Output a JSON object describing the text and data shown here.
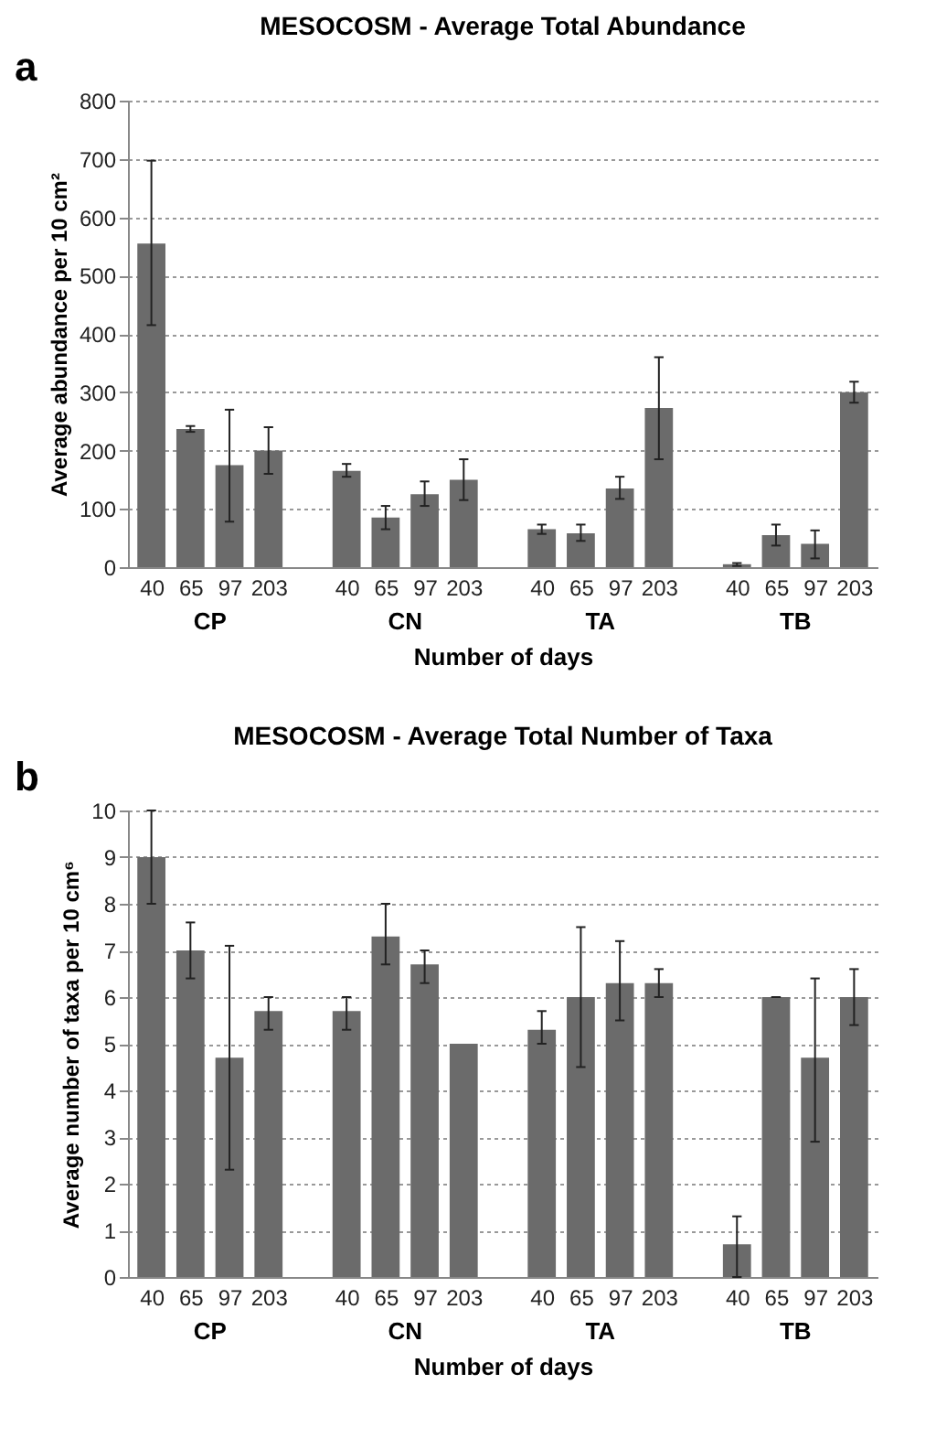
{
  "chart_data": [
    {
      "type": "bar",
      "title": "MESOCOSM - Average Total Abundance",
      "xlabel": "Number of days",
      "ylabel": "Average abundance per 10 cm²",
      "annotations": [
        "a",
        "CP",
        "CN",
        "TA",
        "TB"
      ],
      "categories": [
        "40",
        "65",
        "97",
        "203",
        null,
        "40",
        "65",
        "97",
        "203",
        null,
        "40",
        "65",
        "97",
        "203",
        null,
        "40",
        "65",
        "97",
        "203"
      ],
      "values": [
        555,
        237,
        175,
        200,
        null,
        165,
        85,
        125,
        150,
        null,
        65,
        58,
        135,
        273,
        null,
        5,
        55,
        40,
        300
      ],
      "errors": [
        [
          415,
          697
        ],
        [
          232,
          242
        ],
        [
          78,
          270
        ],
        [
          160,
          240
        ],
        null,
        [
          155,
          177
        ],
        [
          65,
          105
        ],
        [
          105,
          147
        ],
        [
          115,
          185
        ],
        null,
        [
          57,
          73
        ],
        [
          45,
          73
        ],
        [
          117,
          155
        ],
        [
          185,
          360
        ],
        null,
        [
          2,
          7
        ],
        [
          37,
          73
        ],
        [
          15,
          63
        ],
        [
          282,
          318
        ]
      ],
      "color": "#6b6b6b",
      "ylim": [
        0,
        800
      ],
      "yticks": [
        0,
        100,
        200,
        300,
        400,
        500,
        600,
        700,
        800
      ],
      "grid": "y"
    },
    {
      "type": "bar",
      "title": "MESOCOSM - Average Total Number of Taxa",
      "xlabel": "Number of days",
      "ylabel": "Average number of taxa per 10 cm⁶",
      "annotations": [
        "b",
        "CP",
        "CN",
        "TA",
        "TB"
      ],
      "categories": [
        "40",
        "65",
        "97",
        "203",
        null,
        "40",
        "65",
        "97",
        "203",
        null,
        "40",
        "65",
        "97",
        "203",
        null,
        "40",
        "65",
        "97",
        "203"
      ],
      "values": [
        9,
        7,
        4.7,
        5.7,
        null,
        5.7,
        7.3,
        6.7,
        5.0,
        null,
        5.3,
        6,
        6.3,
        6.3,
        null,
        0.7,
        6,
        4.7,
        6
      ],
      "errors": [
        [
          8,
          10
        ],
        [
          6.4,
          7.6
        ],
        [
          2.3,
          7.1
        ],
        [
          5.3,
          6
        ],
        null,
        [
          5.3,
          6
        ],
        [
          6.7,
          8
        ],
        [
          6.3,
          7
        ],
        null,
        null,
        [
          5,
          5.7
        ],
        [
          4.5,
          7.5
        ],
        [
          5.5,
          7.2
        ],
        [
          6,
          6.6
        ],
        null,
        [
          0,
          1.3
        ],
        [
          6,
          6
        ],
        [
          2.9,
          6.4
        ],
        [
          5.4,
          6.6
        ]
      ],
      "color": "#6b6b6b",
      "ylim": [
        0,
        10
      ],
      "yticks": [
        0,
        1,
        2,
        3,
        4,
        5,
        6,
        7,
        8,
        9,
        10
      ],
      "grid": "y"
    }
  ]
}
